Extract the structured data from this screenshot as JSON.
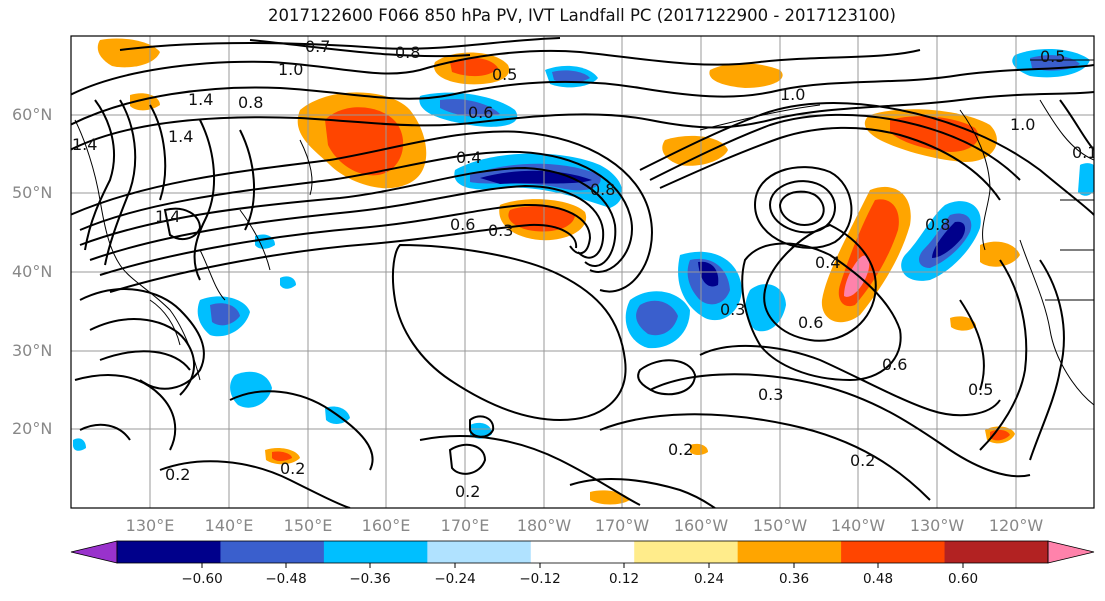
{
  "title": "2017122600 F066 850 hPa PV, IVT Landfall PC (2017122900 - 2017123100)",
  "lat_labels": [
    "60°N",
    "50°N",
    "40°N",
    "30°N",
    "20°N"
  ],
  "lon_labels": [
    "130°E",
    "140°E",
    "150°E",
    "160°E",
    "170°E",
    "180°W",
    "170°W",
    "160°W",
    "150°W",
    "140°W",
    "130°W",
    "120°W"
  ],
  "contour_labels": [
    "0.7",
    "0.8",
    "1.0",
    "1.4",
    "0.8",
    "1.4",
    "1.4",
    "1.4",
    "0.8",
    "0.6",
    "0.4",
    "0.3",
    "0.6",
    "0.5",
    "1.0",
    "0.4",
    "0.3",
    "0.6",
    "0.6",
    "0.5",
    "0.3",
    "0.2",
    "0.2",
    "0.2",
    "0.2",
    "0.2",
    "0.1",
    "0.5",
    "1.0",
    "0.8"
  ],
  "colorbar": {
    "ticks": [
      "−0.60",
      "−0.48",
      "−0.36",
      "−0.24",
      "−0.12",
      "0.12",
      "0.24",
      "0.36",
      "0.48",
      "0.60"
    ],
    "colors": [
      "#9932cc",
      "#00008b",
      "#3a5fcd",
      "#00bfff",
      "#b0e2ff",
      "#ffffff",
      "#ffec8b",
      "#ffa500",
      "#ff4500",
      "#b22222",
      "#ff82ab"
    ]
  },
  "colors": {
    "grid": "#999999",
    "contour": "#000000",
    "coast": "#000000",
    "axis_label": "#888888"
  }
}
